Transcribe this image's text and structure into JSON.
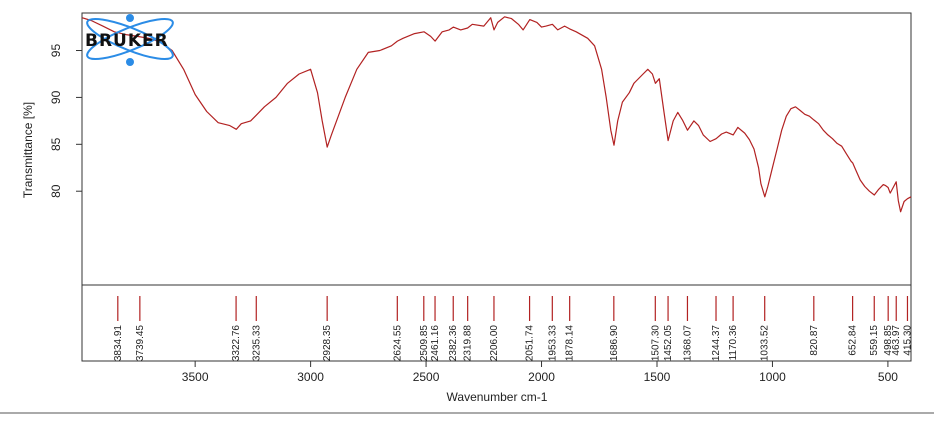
{
  "chart_data": {
    "type": "line",
    "logo_text": "BRUKER",
    "xlabel": "Wavenumber cm-1",
    "ylabel": "Transmittance [%]",
    "x_reversed": true,
    "xlim": [
      3990,
      400
    ],
    "ylim": [
      70,
      99
    ],
    "x_ticks": [
      3500,
      3000,
      2500,
      2000,
      1500,
      1000,
      500
    ],
    "x_tick_labels": [
      "3500",
      "3000",
      "2500",
      "2000",
      "1500",
      "1000",
      "500"
    ],
    "y_ticks": [
      80,
      85,
      90,
      95
    ],
    "y_tick_labels": [
      "80",
      "85",
      "90",
      "95"
    ],
    "grid": false,
    "colors": {
      "spectrum": "#b22222",
      "peak_marker": "#b22222",
      "frame": "#333333",
      "logo_orbit": "#2b8ce6"
    },
    "series": [
      {
        "x": [
          3990,
          3950,
          3900,
          3850,
          3800,
          3750,
          3700,
          3650,
          3600,
          3550,
          3500,
          3450,
          3400,
          3350,
          3322,
          3300,
          3260,
          3235,
          3200,
          3150,
          3100,
          3050,
          3000,
          2970,
          2950,
          2928,
          2910,
          2880,
          2850,
          2800,
          2750,
          2700,
          2650,
          2624,
          2600,
          2550,
          2509,
          2480,
          2461,
          2430,
          2400,
          2382,
          2350,
          2320,
          2300,
          2250,
          2220,
          2206,
          2190,
          2160,
          2130,
          2100,
          2080,
          2051,
          2020,
          2000,
          1980,
          1953,
          1930,
          1900,
          1878,
          1850,
          1800,
          1770,
          1740,
          1720,
          1700,
          1686,
          1670,
          1650,
          1620,
          1600,
          1560,
          1540,
          1520,
          1507,
          1490,
          1470,
          1452,
          1430,
          1410,
          1390,
          1368,
          1340,
          1320,
          1300,
          1270,
          1244,
          1220,
          1200,
          1170,
          1150,
          1120,
          1100,
          1080,
          1060,
          1050,
          1033,
          1020,
          1000,
          980,
          960,
          940,
          920,
          900,
          880,
          860,
          840,
          821,
          800,
          780,
          760,
          740,
          720,
          700,
          680,
          660,
          652,
          640,
          620,
          600,
          580,
          559,
          540,
          520,
          510,
          499,
          490,
          475,
          464,
          455,
          445,
          430,
          415,
          400
        ],
        "y": [
          98.5,
          98.2,
          97.6,
          97.0,
          96.7,
          96.5,
          96.3,
          95.9,
          95.0,
          93.0,
          90.3,
          88.5,
          87.3,
          87.0,
          86.6,
          87.2,
          87.5,
          88.1,
          89.0,
          90.0,
          91.5,
          92.5,
          93.0,
          90.5,
          87.5,
          84.7,
          86.0,
          88.0,
          90.0,
          93.0,
          94.8,
          95.0,
          95.5,
          96.0,
          96.3,
          96.8,
          97.0,
          96.5,
          96.0,
          97.0,
          97.2,
          97.5,
          97.2,
          97.4,
          97.8,
          97.6,
          98.5,
          97.2,
          98.0,
          98.6,
          98.4,
          97.8,
          97.2,
          98.3,
          98.0,
          97.5,
          97.6,
          97.8,
          97.2,
          97.6,
          97.3,
          97.0,
          96.3,
          95.5,
          93.0,
          90.0,
          86.5,
          84.9,
          87.5,
          89.5,
          90.5,
          91.5,
          92.5,
          93.0,
          92.5,
          91.5,
          92.0,
          88.5,
          85.4,
          87.5,
          88.4,
          87.6,
          86.5,
          87.5,
          87.0,
          86.0,
          85.3,
          85.6,
          86.1,
          86.3,
          86.0,
          86.8,
          86.2,
          85.5,
          84.5,
          82.5,
          80.8,
          79.4,
          80.5,
          82.5,
          84.5,
          86.5,
          88.0,
          88.8,
          89.0,
          88.6,
          88.2,
          88.0,
          87.6,
          87.2,
          86.5,
          86.0,
          85.6,
          85.1,
          84.8,
          84.0,
          83.2,
          83.0,
          82.3,
          81.2,
          80.5,
          80.0,
          79.6,
          80.2,
          80.7,
          80.6,
          80.4,
          79.8,
          80.5,
          81.0,
          79.0,
          77.8,
          78.9,
          79.2,
          79.4
        ]
      }
    ],
    "peaks": [
      "3834.91",
      "3739.45",
      "3322.76",
      "3235.33",
      "2928.35",
      "2624.55",
      "2509.85",
      "2461.16",
      "2382.36",
      "2319.88",
      "2206.00",
      "2051.74",
      "1953.33",
      "1878.14",
      "1686.90",
      "1507.30",
      "1452.05",
      "1368.07",
      "1244.37",
      "1170.36",
      "1033.52",
      "820.87",
      "652.84",
      "559.15",
      "498.85",
      "463.97",
      "415.30"
    ]
  }
}
